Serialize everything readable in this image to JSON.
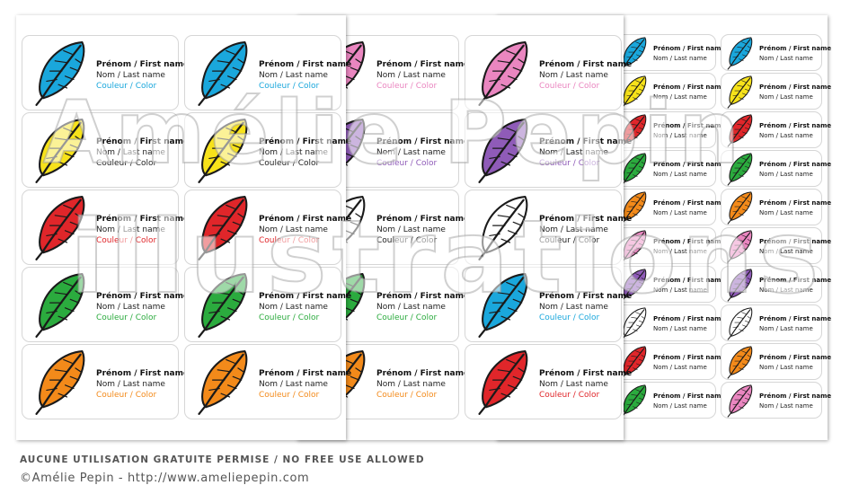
{
  "label_text": {
    "first_name": "Prénom / First name",
    "last_name": "Nom / Last name",
    "color": "Couleur / Color"
  },
  "palette": {
    "blue": "#1aa7dc",
    "pink": "#ea86c0",
    "yellow": "#f7e21a",
    "purple": "#8f5bb8",
    "red": "#e0262a",
    "white": "#ffffff",
    "green": "#2bab3e",
    "orange": "#f38a1a"
  },
  "sheets": [
    {
      "name": "sheet-large-left",
      "feathers": [
        "blue",
        "blue",
        "yellow",
        "yellow",
        "red",
        "red",
        "green",
        "green",
        "orange",
        "orange"
      ],
      "color_line_color": [
        "blue",
        "blue",
        "none",
        "none",
        "red",
        "red",
        "green",
        "green",
        "orange",
        "orange"
      ]
    },
    {
      "name": "sheet-large-middle",
      "feathers": [
        "pink",
        "pink",
        "purple",
        "purple",
        "white",
        "white",
        "green",
        "blue",
        "orange",
        "red"
      ],
      "color_line_color": [
        "pink",
        "pink",
        "purple",
        "purple",
        "none",
        "none",
        "green",
        "blue",
        "orange",
        "red"
      ]
    },
    {
      "name": "sheet-small-right",
      "feathers": [
        "blue",
        "blue",
        "yellow",
        "yellow",
        "red",
        "red",
        "green",
        "green",
        "orange",
        "orange",
        "pink",
        "pink",
        "purple",
        "purple",
        "white",
        "white",
        "red",
        "orange",
        "green",
        "pink"
      ]
    }
  ],
  "watermark": {
    "line1": "Amélie Pepin",
    "line2": "illustrations"
  },
  "footer": {
    "notice": "AUCUNE UTILISATION GRATUITE PERMISE / NO FREE USE ALLOWED",
    "copyright": "©Amélie Pepin - http://www.ameliepepin.com"
  }
}
